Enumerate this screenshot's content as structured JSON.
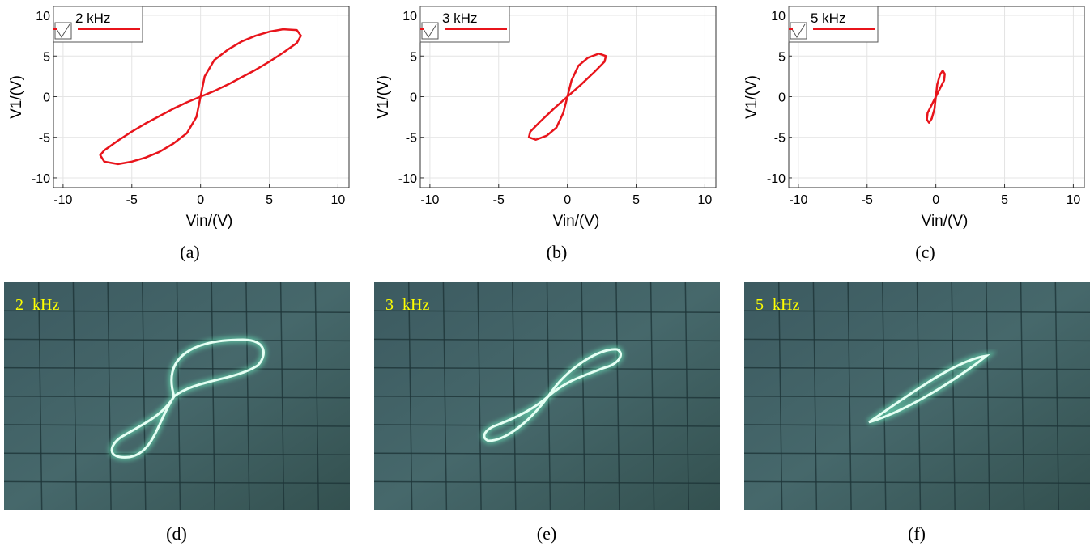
{
  "chart_data": [
    {
      "type": "line",
      "caption": "(a)",
      "xlabel": "Vin/(V)",
      "ylabel": "V1/(V)",
      "xlim": [
        -10.7,
        10.8
      ],
      "ylim": [
        -11.2,
        11.1
      ],
      "xticks": [
        -10,
        -5,
        0,
        5,
        10
      ],
      "yticks": [
        -10,
        -5,
        0,
        5,
        10
      ],
      "grid": true,
      "legend": "upper left",
      "series": [
        {
          "name": "2 kHz",
          "color": "#e8141b",
          "x": [
            0,
            0.3,
            1,
            2,
            3,
            4,
            5,
            6,
            7,
            7.3,
            7,
            6,
            5,
            4,
            3,
            2,
            1,
            0,
            -0.3,
            -1,
            -2,
            -3,
            -4,
            -5,
            -6,
            -7,
            -7.3,
            -7,
            -6,
            -5,
            -4,
            -3,
            -2,
            -1,
            0
          ],
          "values": [
            0,
            2.5,
            4.5,
            5.8,
            6.8,
            7.5,
            8,
            8.3,
            8.2,
            7.5,
            6.6,
            5.4,
            4.3,
            3.3,
            2.4,
            1.5,
            0.7,
            0,
            -2.5,
            -4.5,
            -5.8,
            -6.8,
            -7.5,
            -8,
            -8.3,
            -8,
            -7.2,
            -6.6,
            -5.4,
            -4.3,
            -3.3,
            -2.4,
            -1.5,
            -0.7,
            0
          ]
        }
      ]
    },
    {
      "type": "line",
      "caption": "(b)",
      "xlabel": "Vin/(V)",
      "ylabel": "V1/(V)",
      "xlim": [
        -10.7,
        10.8
      ],
      "ylim": [
        -11.2,
        11.1
      ],
      "xticks": [
        -10,
        -5,
        0,
        5,
        10
      ],
      "yticks": [
        -10,
        -5,
        0,
        5,
        10
      ],
      "grid": true,
      "legend": "upper left",
      "series": [
        {
          "name": "3 kHz",
          "color": "#e8141b",
          "x": [
            0,
            0.3,
            0.8,
            1.5,
            2.3,
            2.8,
            2.7,
            2,
            1,
            0,
            -0.3,
            -0.8,
            -1.5,
            -2.3,
            -2.8,
            -2.7,
            -2,
            -1,
            0
          ],
          "values": [
            0,
            2,
            3.8,
            4.8,
            5.3,
            5,
            4.3,
            3.1,
            1.5,
            0,
            -2,
            -3.8,
            -4.8,
            -5.3,
            -5,
            -4.3,
            -3.1,
            -1.5,
            0
          ]
        }
      ]
    },
    {
      "type": "line",
      "caption": "(c)",
      "xlabel": "Vin/(V)",
      "ylabel": "V1/(V)",
      "xlim": [
        -10.7,
        10.8
      ],
      "ylim": [
        -11.2,
        11.1
      ],
      "xticks": [
        -10,
        -5,
        0,
        5,
        10
      ],
      "yticks": [
        -10,
        -5,
        0,
        5,
        10
      ],
      "grid": true,
      "legend": "upper left",
      "series": [
        {
          "name": "5 kHz",
          "color": "#e8141b",
          "x": [
            0,
            0.1,
            0.3,
            0.5,
            0.65,
            0.6,
            0.3,
            0,
            -0.1,
            -0.3,
            -0.5,
            -0.65,
            -0.6,
            -0.3,
            0
          ],
          "values": [
            0,
            1.5,
            2.7,
            3.2,
            2.8,
            2,
            1,
            0,
            -1.5,
            -2.7,
            -3.2,
            -2.8,
            -2,
            -1,
            0
          ]
        }
      ]
    }
  ],
  "photos": [
    {
      "label": "2 kHz",
      "caption": "(d)"
    },
    {
      "label": "3 kHz",
      "caption": "(e)"
    },
    {
      "label": "5 kHz",
      "caption": "(f)"
    }
  ]
}
